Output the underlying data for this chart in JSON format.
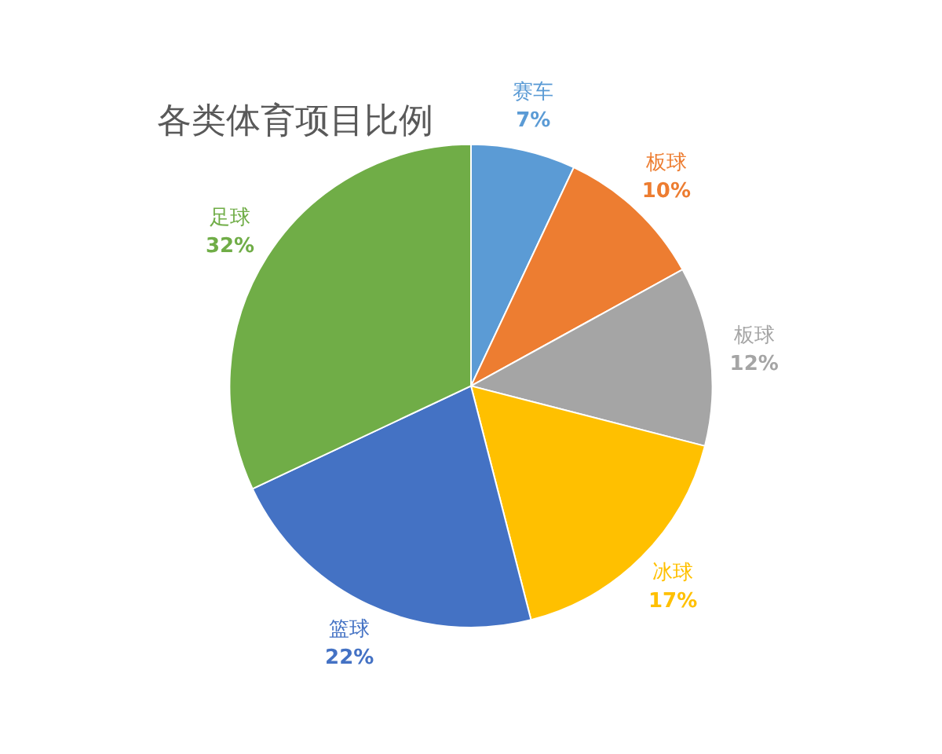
{
  "chart_data": {
    "type": "pie",
    "title": "各类体育项目比例",
    "categories": [
      "赛车",
      "板球",
      "板球",
      "冰球",
      "篮球",
      "足球"
    ],
    "values": [
      7,
      10,
      12,
      17,
      22,
      32
    ],
    "value_labels": [
      "7%",
      "10%",
      "12%",
      "17%",
      "22%",
      "32%"
    ],
    "colors": [
      "#5b9bd5",
      "#ed7d31",
      "#a5a5a5",
      "#ffc000",
      "#4472c4",
      "#70ad47"
    ],
    "legend": false
  }
}
